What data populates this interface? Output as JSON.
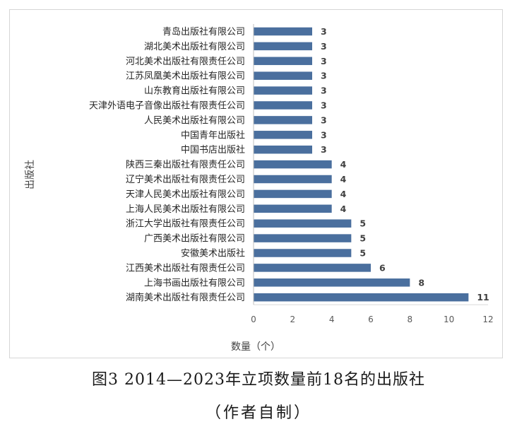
{
  "chart_data": {
    "type": "bar",
    "orientation": "horizontal",
    "categories": [
      "青岛出版社有限公司",
      "湖北美术出版社有限公司",
      "河北美术出版社有限责任公司",
      "江苏凤凰美术出版社有限公司",
      "山东教育出版社有限公司",
      "天津外语电子音像出版社有限责任公司",
      "人民美术出版社有限公司",
      "中国青年出版社",
      "中国书店出版社",
      "陕西三秦出版社有限责任公司",
      "辽宁美术出版社有限责任公司",
      "天津人民美术出版社有限公司",
      "上海人民美术出版社有限公司",
      "浙江大学出版社有限责任公司",
      "广西美术出版社有限公司",
      "安徽美术出版社",
      "江西美术出版社有限责任公司",
      "上海书画出版社有限公司",
      "湖南美术出版社有限责任公司"
    ],
    "values": [
      3,
      3,
      3,
      3,
      3,
      3,
      3,
      3,
      3,
      4,
      4,
      4,
      4,
      5,
      5,
      5,
      6,
      8,
      11
    ],
    "xlabel": "数量（个）",
    "ylabel": "出版社",
    "xlim": [
      0,
      12
    ],
    "xticks": [
      0,
      2,
      4,
      6,
      8,
      10,
      12
    ],
    "grid": false,
    "data_labels": true,
    "bar_color": "#4a6f9e"
  },
  "caption": {
    "title": "图3 2014—2023年立项数量前18名的出版社",
    "note": "（作者自制）"
  }
}
